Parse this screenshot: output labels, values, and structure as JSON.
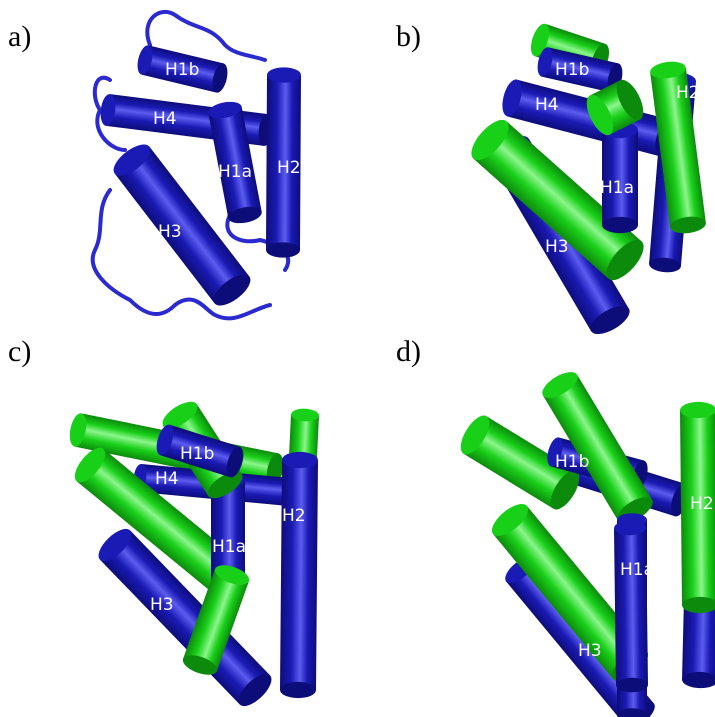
{
  "colors": {
    "blue": "#1a1ab4",
    "blue_dark": "#0d0d7a",
    "blue_light": "#5c5cf0",
    "green": "#19d019",
    "green_dark": "#0c8a0c",
    "green_light": "#8cf58c",
    "loop": "#2a2ad0"
  },
  "panels": [
    {
      "letter": "a)",
      "helices": [
        "H1b",
        "H4",
        "H1a",
        "H2",
        "H3"
      ]
    },
    {
      "letter": "b)",
      "helices": [
        "H1b",
        "H4",
        "H2",
        "H1a",
        "H3"
      ]
    },
    {
      "letter": "c)",
      "helices": [
        "H1b",
        "H4",
        "H2",
        "H1a",
        "H3"
      ]
    },
    {
      "letter": "d)",
      "helices": [
        "H1b",
        "H4",
        "H2",
        "H1a",
        "H3"
      ]
    }
  ]
}
